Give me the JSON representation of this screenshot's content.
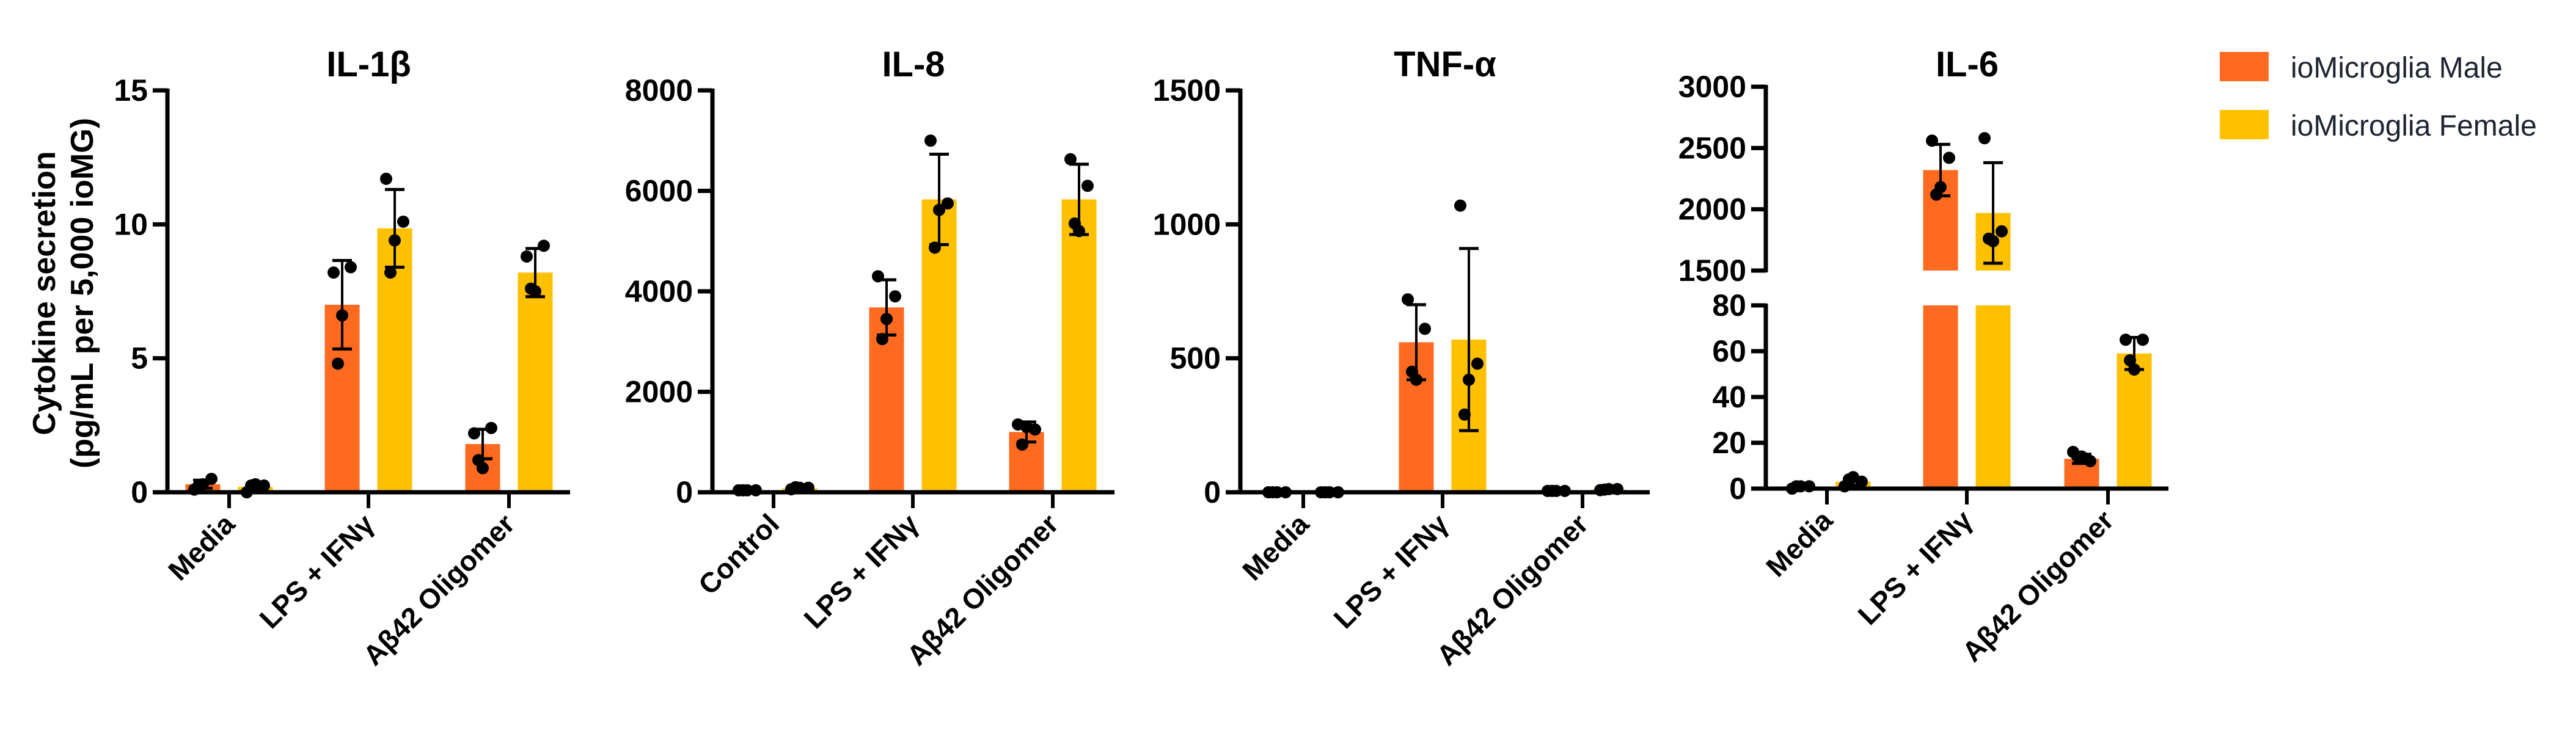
{
  "colors": {
    "male": "#FF6A21",
    "female": "#FFC000"
  },
  "legend": [
    {
      "label": "ioMicroglia Male",
      "color": "#FF6A21"
    },
    {
      "label": "ioMicroglia Female",
      "color": "#FFC000"
    }
  ],
  "ylabel_line1": "Cytokine secretion",
  "ylabel_line2": "(pg/mL per 5,000 ioMG)",
  "chart_data": [
    {
      "type": "bar",
      "title": "IL-1β",
      "ylim": [
        0,
        15
      ],
      "yticks": [
        0,
        5,
        10,
        15
      ],
      "categories": [
        "Media",
        "LPS + IFNγ",
        "Aβ42 Oligomer"
      ],
      "series": [
        {
          "name": "ioMicroglia Male",
          "values": [
            0.3,
            7.0,
            1.8
          ],
          "sd": [
            0.15,
            1.65,
            0.55
          ],
          "points": [
            [
              0.1,
              0.5,
              0.3,
              0.25
            ],
            [
              8.2,
              8.4,
              6.6,
              4.8
            ],
            [
              2.2,
              2.4,
              0.9,
              1.2
            ]
          ]
        },
        {
          "name": "ioMicroglia Female",
          "values": [
            0.2,
            9.85,
            8.2
          ],
          "sd": [
            0.1,
            1.45,
            0.9
          ],
          "points": [
            [
              0.0,
              0.25,
              0.3,
              0.25
            ],
            [
              11.7,
              10.1,
              9.4,
              8.2
            ],
            [
              8.8,
              9.2,
              7.5,
              7.6
            ]
          ]
        }
      ]
    },
    {
      "type": "bar",
      "title": "IL-8",
      "ylim": [
        0,
        8000
      ],
      "yticks": [
        0,
        2000,
        4000,
        6000,
        8000
      ],
      "categories": [
        "Control",
        "LPS + IFNγ",
        "Aβ42 Oligomer"
      ],
      "series": [
        {
          "name": "ioMicroglia Male",
          "values": [
            40,
            3680,
            1200
          ],
          "sd": [
            5,
            550,
            200
          ],
          "points": [
            [
              40,
              40,
              40,
              40
            ],
            [
              4300,
              3900,
              3450,
              3050
            ],
            [
              1350,
              1250,
              1300,
              950
            ]
          ]
        },
        {
          "name": "ioMicroglia Female",
          "values": [
            80,
            5830,
            5830
          ],
          "sd": [
            15,
            900,
            700
          ],
          "points": [
            [
              60,
              90,
              90,
              100
            ],
            [
              7000,
              5750,
              5620,
              4870
            ],
            [
              6630,
              6100,
              5200,
              5350
            ]
          ]
        }
      ]
    },
    {
      "type": "bar",
      "title": "TNF-α",
      "ylim": [
        0,
        1500
      ],
      "yticks": [
        0,
        500,
        1000,
        1500
      ],
      "categories": [
        "Media",
        "LPS + IFNγ",
        "Aβ42 Oligomer"
      ],
      "series": [
        {
          "name": "ioMicroglia Male",
          "values": [
            0,
            560,
            5
          ],
          "sd": [
            0,
            140,
            1
          ],
          "points": [
            [
              0,
              0,
              0,
              0
            ],
            [
              720,
              610,
              420,
              450
            ],
            [
              5,
              5,
              5,
              5
            ]
          ]
        },
        {
          "name": "ioMicroglia Female",
          "values": [
            0,
            570,
            10
          ],
          "sd": [
            0,
            340,
            3
          ],
          "points": [
            [
              0,
              0,
              0,
              0
            ],
            [
              1070,
              480,
              420,
              290
            ],
            [
              8,
              12,
              12,
              10
            ]
          ]
        }
      ]
    },
    {
      "type": "bar",
      "title": "IL-6",
      "axis_break": true,
      "ylim_lower": [
        0,
        80
      ],
      "yticks_lower": [
        0,
        20,
        40,
        60,
        80
      ],
      "ylim_upper": [
        1500,
        3000
      ],
      "yticks_upper": [
        1500,
        2000,
        2500,
        3000
      ],
      "categories": [
        "Media",
        "LPS + IFNγ",
        "Aβ42 Oligomer"
      ],
      "series": [
        {
          "name": "ioMicroglia Male",
          "values": [
            1,
            2320,
            13
          ],
          "sd": [
            0.5,
            210,
            2
          ],
          "points": [
            [
              0,
              1,
              1,
              1
            ],
            [
              2560,
              2420,
              2180,
              2120
            ],
            [
              16,
              12,
              14,
              14
            ]
          ]
        },
        {
          "name": "ioMicroglia Female",
          "values": [
            3,
            1970,
            59
          ],
          "sd": [
            1.5,
            410,
            7
          ],
          "points": [
            [
              1,
              3,
              5,
              4
            ],
            [
              2580,
              1820,
              1740,
              1760
            ],
            [
              65,
              65,
              52,
              56
            ]
          ]
        }
      ]
    }
  ]
}
